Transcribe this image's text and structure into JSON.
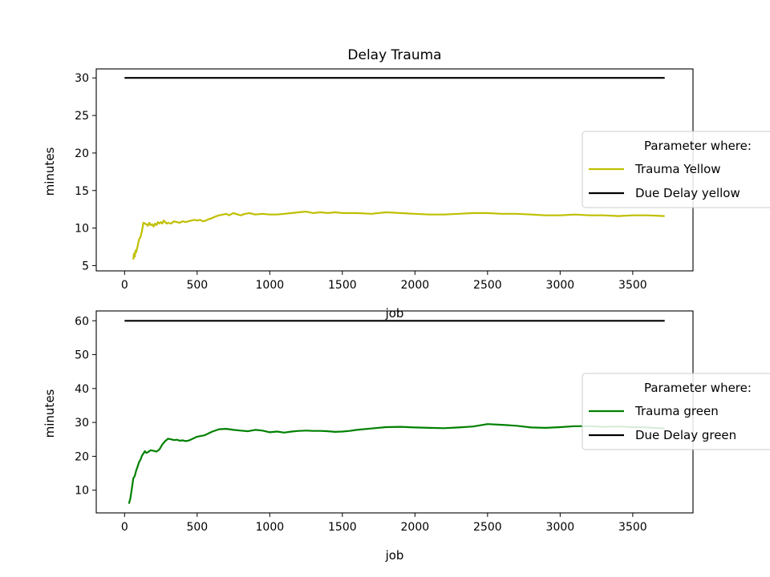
{
  "figure_title": "Delay Trauma",
  "chart_data": [
    {
      "type": "line",
      "xlabel": "job",
      "ylabel": "minutes",
      "xlim": [
        -195,
        3915
      ],
      "ylim": [
        4.3,
        31.2
      ],
      "xticks": [
        0,
        500,
        1000,
        1500,
        2000,
        2500,
        3000,
        3500
      ],
      "yticks": [
        5,
        10,
        15,
        20,
        25,
        30
      ],
      "grid": false,
      "legend": {
        "title": "Parameter where:",
        "placement": "center-right"
      },
      "series": [
        {
          "name": "Trauma Yellow",
          "color": "#bfbf00",
          "x": [
            60,
            65,
            70,
            75,
            80,
            90,
            100,
            110,
            120,
            130,
            140,
            150,
            160,
            170,
            180,
            190,
            200,
            210,
            220,
            230,
            240,
            250,
            260,
            270,
            280,
            290,
            300,
            320,
            340,
            360,
            380,
            400,
            420,
            440,
            460,
            480,
            500,
            520,
            540,
            560,
            580,
            600,
            620,
            650,
            680,
            700,
            720,
            750,
            780,
            800,
            830,
            860,
            900,
            950,
            1000,
            1050,
            1100,
            1150,
            1200,
            1250,
            1300,
            1350,
            1400,
            1450,
            1500,
            1550,
            1600,
            1700,
            1800,
            1900,
            2000,
            2100,
            2200,
            2300,
            2400,
            2500,
            2600,
            2700,
            2800,
            2900,
            3000,
            3100,
            3200,
            3300,
            3400,
            3500,
            3600,
            3720
          ],
          "y": [
            5.8,
            6.6,
            6.2,
            7.0,
            6.8,
            7.6,
            8.5,
            8.8,
            9.6,
            10.7,
            10.6,
            10.5,
            10.3,
            10.7,
            10.4,
            10.5,
            10.2,
            10.6,
            10.4,
            10.8,
            10.6,
            10.8,
            10.6,
            11.0,
            10.8,
            10.6,
            10.7,
            10.6,
            10.9,
            10.8,
            10.7,
            10.9,
            10.8,
            10.9,
            11.0,
            11.1,
            11.0,
            11.1,
            10.9,
            11.0,
            11.2,
            11.3,
            11.5,
            11.7,
            11.8,
            11.9,
            11.7,
            12.0,
            11.8,
            11.7,
            11.9,
            12.0,
            11.8,
            11.9,
            11.8,
            11.8,
            11.9,
            12.0,
            12.1,
            12.2,
            12.0,
            12.1,
            12.0,
            12.1,
            12.0,
            12.0,
            12.0,
            11.9,
            12.1,
            12.0,
            11.9,
            11.8,
            11.8,
            11.9,
            12.0,
            12.0,
            11.9,
            11.9,
            11.8,
            11.7,
            11.7,
            11.8,
            11.7,
            11.7,
            11.6,
            11.7,
            11.7,
            11.6
          ]
        },
        {
          "name": "Due Delay yellow",
          "color": "#000000",
          "x": [
            0,
            3720
          ],
          "y": [
            30,
            30
          ]
        }
      ]
    },
    {
      "type": "line",
      "xlabel": "job",
      "ylabel": "minutes",
      "xlim": [
        -195,
        3915
      ],
      "ylim": [
        3.3,
        62.9
      ],
      "xticks": [
        0,
        500,
        1000,
        1500,
        2000,
        2500,
        3000,
        3500
      ],
      "yticks": [
        10,
        20,
        30,
        40,
        50,
        60
      ],
      "grid": false,
      "legend": {
        "title": "Parameter where:",
        "placement": "center-right"
      },
      "series": [
        {
          "name": "Trauma green",
          "color": "#008000",
          "x": [
            30,
            40,
            50,
            60,
            70,
            80,
            90,
            100,
            110,
            120,
            130,
            140,
            150,
            160,
            180,
            200,
            220,
            240,
            260,
            280,
            300,
            320,
            340,
            360,
            380,
            400,
            420,
            440,
            460,
            500,
            550,
            600,
            650,
            700,
            750,
            800,
            850,
            900,
            950,
            1000,
            1050,
            1100,
            1150,
            1200,
            1250,
            1300,
            1350,
            1400,
            1450,
            1500,
            1550,
            1600,
            1700,
            1800,
            1900,
            2000,
            2100,
            2200,
            2300,
            2400,
            2500,
            2600,
            2700,
            2800,
            2900,
            3000,
            3100,
            3200,
            3300,
            3400,
            3500,
            3600,
            3720
          ],
          "y": [
            6.0,
            7.5,
            10.5,
            13.5,
            14.2,
            15.8,
            17.0,
            18.3,
            19.0,
            20.2,
            20.8,
            21.5,
            21.0,
            21.2,
            21.8,
            21.6,
            21.4,
            22.0,
            23.5,
            24.5,
            25.2,
            25.0,
            24.8,
            24.9,
            24.6,
            24.7,
            24.5,
            24.6,
            25.0,
            25.8,
            26.2,
            27.2,
            28.0,
            28.1,
            27.8,
            27.6,
            27.4,
            27.8,
            27.6,
            27.1,
            27.3,
            27.0,
            27.3,
            27.5,
            27.6,
            27.5,
            27.5,
            27.4,
            27.2,
            27.3,
            27.5,
            27.8,
            28.2,
            28.6,
            28.7,
            28.5,
            28.4,
            28.3,
            28.5,
            28.8,
            29.5,
            29.3,
            29.0,
            28.5,
            28.4,
            28.6,
            28.9,
            28.9,
            28.7,
            28.8,
            28.6,
            28.5,
            28.2
          ]
        },
        {
          "name": "Due Delay green",
          "color": "#000000",
          "x": [
            0,
            3720
          ],
          "y": [
            60,
            60
          ]
        }
      ]
    }
  ]
}
